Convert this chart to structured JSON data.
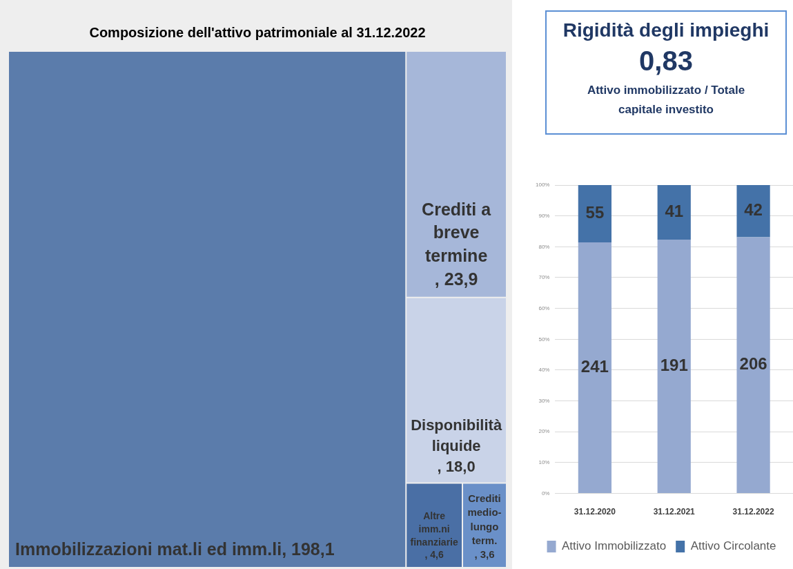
{
  "chart_data": [
    {
      "type": "other",
      "title": "Composizione dell'attivo patrimoniale al 31.12.2022",
      "categories": [
        "Immobilizzazioni mat.li ed imm.li",
        "Crediti a breve termine",
        "Disponibilità liquide",
        "Altre imm.ni finanziarie",
        "Crediti medio-lungo term."
      ],
      "values": [
        198.1,
        23.9,
        18.0,
        4.6,
        3.6
      ],
      "value_labels": [
        ", 198,1",
        ", 23,9",
        ", 18,0",
        ", 4,6",
        ", 3,6"
      ],
      "colors": [
        "#5b7cab",
        "#a6b7d9",
        "#c9d3e8",
        "#4a6fa5",
        "#6a90c8"
      ]
    },
    {
      "type": "other",
      "title": "Rigidità degli impieghi",
      "annotations": [
        "0,83"
      ],
      "subtitle": "Attivo immobilizzato / Totale capitale investito"
    },
    {
      "type": "bar",
      "stacked": true,
      "categories": [
        "31.12.2020",
        "31.12.2021",
        "31.12.2022"
      ],
      "series": [
        {
          "name": "Attivo Immobilizzato",
          "color": "#95a9d0",
          "values": [
            81.4,
            82.3,
            83.1
          ]
        },
        {
          "name": "Attivo Circolante",
          "color": "#4472a8",
          "values": [
            18.6,
            17.7,
            16.9
          ]
        }
      ],
      "annotations": [
        "241",
        "191",
        "206",
        "55",
        "41",
        "42"
      ],
      "ylim": [
        0,
        100
      ],
      "yticks": [
        {
          "value": 0,
          "label": "0%"
        },
        {
          "value": 10,
          "label": "10%"
        },
        {
          "value": 20,
          "label": "20%"
        },
        {
          "value": 30,
          "label": "30%"
        },
        {
          "value": 40,
          "label": "40%"
        },
        {
          "value": 50,
          "label": "50%"
        },
        {
          "value": 60,
          "label": "60%"
        },
        {
          "value": 70,
          "label": "70%"
        },
        {
          "value": 80,
          "label": "80%"
        },
        {
          "value": 90,
          "label": "90%"
        },
        {
          "value": 100,
          "label": "100%"
        }
      ],
      "grid": "y",
      "legend": "bottom"
    }
  ]
}
